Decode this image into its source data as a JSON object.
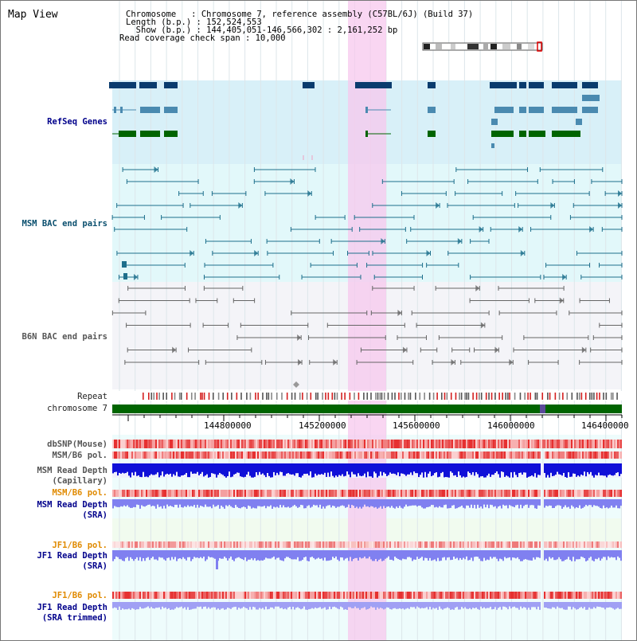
{
  "header": {
    "title": "Map View",
    "info_lines": [
      "Chromosome   : Chromosome 7, reference assembly (C57BL/6J) (Build 37)",
      "Length (b.p.) : 152,524,553",
      "  Show (b.p.) : 144,405,051-146,566,302 : 2,161,252 bp",
      "Read coverage check span : 10,000"
    ]
  },
  "tracks": {
    "refseq": "RefSeq Genes",
    "msm_bac": "MSM BAC end pairs",
    "b6n_bac": "B6N BAC end pairs",
    "repeat": "Repeat",
    "chromosome": "chromosome 7"
  },
  "axis": {
    "ticks": [
      "144800000",
      "145200000",
      "145600000",
      "146000000",
      "146400000"
    ]
  },
  "lower_tracks": {
    "dbsnp": "dbSNP(Mouse)",
    "msm_b6_pol_1": "MSM/B6 pol.",
    "msm_read_depth_cap_1": "MSM Read Depth",
    "msm_read_depth_cap_2": "(Capillary)",
    "msm_b6_pol_2": "MSM/B6 pol.",
    "msm_read_depth_sra_1": "MSM Read Depth",
    "msm_read_depth_sra_2": "(SRA)",
    "jf1_b6_pol_1": "JF1/B6 pol.",
    "jf1_read_depth_sra_1": "JF1 Read Depth",
    "jf1_read_depth_sra_2": "(SRA)",
    "jf1_b6_pol_2": "JF1/B6 pol.",
    "jf1_read_depth_trim_1": "JF1 Read Depth",
    "jf1_read_depth_trim_2": "(SRA trimmed)"
  },
  "colors": {
    "refseq_bg": "#d8f0f8",
    "msm_bg": "#e2f8fa",
    "b6n_bg": "#f4f4f8",
    "highlight": "#f7c8ee",
    "gene_dark": "#0a3c6e",
    "gene_mid": "#4a8ab0",
    "gene_green": "#006400",
    "bac_teal": "#1d6f8c",
    "bac_gray": "#666666",
    "chromosome_green": "#006400",
    "depth_blue": "#1010d8",
    "depth_lavender": "#8080f0",
    "pol_red": "#e83030"
  }
}
